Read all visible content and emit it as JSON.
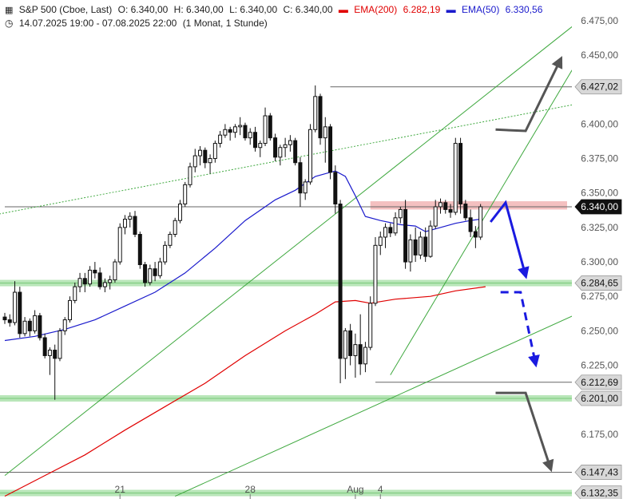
{
  "header": {
    "icon": "candlestick-icon",
    "instrument": "S&P 500 (Cboe, Last)",
    "open": "O: 6.340,00",
    "high": "H: 6.340,00",
    "low": "L: 6.340,00",
    "close": "C: 6.340,00",
    "ema200_label": "EMA(200)",
    "ema200_value": "6.282,19",
    "ema50_label": "EMA(50)",
    "ema50_value": "6.330,56",
    "range_icon": "clock-icon",
    "range": "14.07.2025 19:00 - 07.08.2025 22:00",
    "interval": "(1 Monat, 1 Stunde)"
  },
  "colors": {
    "ema200": "#e00000",
    "ema50": "#1a1acc",
    "trend": "#3ea83e",
    "arrow_blue": "#1a1ae0",
    "arrow_gray": "#555555",
    "support_band": "#b8e6b8",
    "resistance_band": "#f4c0c0",
    "tag_dark": "#111111",
    "tag_gray": "#d8d8d8"
  },
  "chart_data": {
    "type": "candlestick",
    "ylim": [
      6128,
      6490
    ],
    "y_ticks": [
      {
        "value": 6475,
        "label": "6.475,00"
      },
      {
        "value": 6450,
        "label": "6.450,00"
      },
      {
        "value": 6400,
        "label": "6.400,00"
      },
      {
        "value": 6375,
        "label": "6.375,00"
      },
      {
        "value": 6350,
        "label": "6.350,00"
      },
      {
        "value": 6325,
        "label": "6.325,00"
      },
      {
        "value": 6300,
        "label": "6.300,00"
      },
      {
        "value": 6275,
        "label": "6.275,00"
      },
      {
        "value": 6250,
        "label": "6.250,00"
      },
      {
        "value": 6225,
        "label": "6.225,00"
      },
      {
        "value": 6175,
        "label": "6.175,00"
      }
    ],
    "x_ticks": [
      {
        "index": 23,
        "label": "21"
      },
      {
        "index": 49,
        "label": "28"
      },
      {
        "index": 70,
        "label": "Aug"
      },
      {
        "index": 75,
        "label": "4"
      }
    ],
    "price_levels": [
      {
        "value": 6427.02,
        "label": "6.427,02",
        "style": "gray"
      },
      {
        "value": 6340.0,
        "label": "6.340,00",
        "style": "dark"
      },
      {
        "value": 6284.65,
        "label": "6.284,65",
        "style": "gray",
        "band": true
      },
      {
        "value": 6212.69,
        "label": "6.212,69",
        "style": "gray"
      },
      {
        "value": 6201.0,
        "label": "6.201,00",
        "style": "gray",
        "band": true
      },
      {
        "value": 6147.43,
        "label": "6.147,43",
        "style": "gray"
      },
      {
        "value": 6132.35,
        "label": "6.132,35",
        "style": "gray",
        "band": true
      }
    ],
    "resistance_zone": {
      "low": 6338,
      "high": 6344
    },
    "candles": [
      [
        6260,
        6263,
        6255,
        6258
      ],
      [
        6258,
        6262,
        6253,
        6256
      ],
      [
        6256,
        6286,
        6254,
        6278
      ],
      [
        6278,
        6282,
        6245,
        6248
      ],
      [
        6248,
        6260,
        6246,
        6257
      ],
      [
        6257,
        6259,
        6246,
        6250
      ],
      [
        6250,
        6265,
        6248,
        6261
      ],
      [
        6261,
        6263,
        6243,
        6245
      ],
      [
        6245,
        6248,
        6230,
        6232
      ],
      [
        6232,
        6238,
        6218,
        6236
      ],
      [
        6236,
        6240,
        6200,
        6230
      ],
      [
        6230,
        6252,
        6228,
        6250
      ],
      [
        6250,
        6260,
        6247,
        6258
      ],
      [
        6258,
        6275,
        6256,
        6272
      ],
      [
        6272,
        6285,
        6270,
        6282
      ],
      [
        6282,
        6292,
        6278,
        6288
      ],
      [
        6288,
        6292,
        6278,
        6284
      ],
      [
        6284,
        6297,
        6282,
        6294
      ],
      [
        6294,
        6300,
        6288,
        6292
      ],
      [
        6292,
        6296,
        6280,
        6282
      ],
      [
        6282,
        6288,
        6278,
        6285
      ],
      [
        6285,
        6290,
        6280,
        6287
      ],
      [
        6287,
        6302,
        6285,
        6300
      ],
      [
        6300,
        6328,
        6298,
        6325
      ],
      [
        6325,
        6334,
        6320,
        6331
      ],
      [
        6331,
        6336,
        6325,
        6333
      ],
      [
        6333,
        6337,
        6318,
        6320
      ],
      [
        6320,
        6322,
        6295,
        6298
      ],
      [
        6298,
        6300,
        6282,
        6285
      ],
      [
        6285,
        6298,
        6283,
        6295
      ],
      [
        6295,
        6300,
        6286,
        6290
      ],
      [
        6290,
        6303,
        6288,
        6300
      ],
      [
        6300,
        6315,
        6298,
        6312
      ],
      [
        6312,
        6322,
        6310,
        6320
      ],
      [
        6320,
        6332,
        6318,
        6330
      ],
      [
        6330,
        6345,
        6328,
        6342
      ],
      [
        6342,
        6358,
        6340,
        6356
      ],
      [
        6356,
        6372,
        6354,
        6369
      ],
      [
        6369,
        6382,
        6365,
        6377
      ],
      [
        6377,
        6384,
        6370,
        6381
      ],
      [
        6381,
        6383,
        6368,
        6372
      ],
      [
        6372,
        6378,
        6364,
        6375
      ],
      [
        6375,
        6388,
        6372,
        6386
      ],
      [
        6386,
        6395,
        6383,
        6392
      ],
      [
        6392,
        6400,
        6390,
        6396
      ],
      [
        6396,
        6398,
        6388,
        6394
      ],
      [
        6394,
        6400,
        6390,
        6398
      ],
      [
        6398,
        6405,
        6392,
        6399
      ],
      [
        6399,
        6401,
        6388,
        6390
      ],
      [
        6390,
        6397,
        6385,
        6394
      ],
      [
        6394,
        6398,
        6380,
        6383
      ],
      [
        6383,
        6388,
        6376,
        6386
      ],
      [
        6386,
        6412,
        6384,
        6406
      ],
      [
        6406,
        6408,
        6388,
        6390
      ],
      [
        6390,
        6393,
        6373,
        6376
      ],
      [
        6376,
        6385,
        6370,
        6383
      ],
      [
        6383,
        6390,
        6376,
        6385
      ],
      [
        6385,
        6392,
        6380,
        6388
      ],
      [
        6388,
        6390,
        6370,
        6372
      ],
      [
        6372,
        6376,
        6340,
        6350
      ],
      [
        6350,
        6360,
        6345,
        6358
      ],
      [
        6358,
        6400,
        6356,
        6396
      ],
      [
        6396,
        6428,
        6394,
        6420
      ],
      [
        6420,
        6422,
        6385,
        6390
      ],
      [
        6390,
        6405,
        6372,
        6398
      ],
      [
        6398,
        6400,
        6360,
        6365
      ],
      [
        6365,
        6370,
        6335,
        6342
      ],
      [
        6342,
        6345,
        6212,
        6230
      ],
      [
        6230,
        6252,
        6215,
        6250
      ],
      [
        6250,
        6255,
        6225,
        6232
      ],
      [
        6232,
        6248,
        6216,
        6240
      ],
      [
        6240,
        6262,
        6218,
        6226
      ],
      [
        6226,
        6242,
        6220,
        6238
      ],
      [
        6238,
        6275,
        6236,
        6270
      ],
      [
        6270,
        6318,
        6268,
        6312
      ],
      [
        6312,
        6322,
        6305,
        6318
      ],
      [
        6318,
        6328,
        6310,
        6325
      ],
      [
        6325,
        6328,
        6318,
        6321
      ],
      [
        6321,
        6336,
        6319,
        6332
      ],
      [
        6332,
        6340,
        6328,
        6338
      ],
      [
        6338,
        6345,
        6295,
        6300
      ],
      [
        6300,
        6320,
        6293,
        6316
      ],
      [
        6316,
        6325,
        6300,
        6305
      ],
      [
        6305,
        6322,
        6302,
        6318
      ],
      [
        6318,
        6325,
        6300,
        6304
      ],
      [
        6304,
        6330,
        6303,
        6326
      ],
      [
        6326,
        6345,
        6324,
        6340
      ],
      [
        6340,
        6346,
        6335,
        6343
      ],
      [
        6343,
        6345,
        6335,
        6338
      ],
      [
        6338,
        6342,
        6332,
        6336
      ],
      [
        6336,
        6390,
        6334,
        6386
      ],
      [
        6386,
        6390,
        6335,
        6342
      ],
      [
        6342,
        6345,
        6330,
        6332
      ],
      [
        6332,
        6338,
        6318,
        6322
      ],
      [
        6322,
        6326,
        6310,
        6318
      ],
      [
        6318,
        6342,
        6316,
        6340
      ]
    ],
    "ema50_points": [
      [
        0,
        6243
      ],
      [
        6,
        6246
      ],
      [
        12,
        6251
      ],
      [
        18,
        6258
      ],
      [
        24,
        6268
      ],
      [
        30,
        6278
      ],
      [
        36,
        6292
      ],
      [
        42,
        6310
      ],
      [
        48,
        6330
      ],
      [
        54,
        6345
      ],
      [
        58,
        6352
      ],
      [
        62,
        6362
      ],
      [
        66,
        6366
      ],
      [
        68,
        6362
      ],
      [
        70,
        6348
      ],
      [
        72,
        6333
      ],
      [
        75,
        6330
      ],
      [
        79,
        6327
      ],
      [
        82,
        6326
      ],
      [
        84,
        6322
      ],
      [
        87,
        6325
      ],
      [
        90,
        6328
      ],
      [
        93,
        6330
      ],
      [
        95,
        6331
      ]
    ],
    "ema200_points": [
      [
        0,
        6130
      ],
      [
        8,
        6145
      ],
      [
        16,
        6160
      ],
      [
        24,
        6178
      ],
      [
        32,
        6195
      ],
      [
        40,
        6212
      ],
      [
        48,
        6232
      ],
      [
        56,
        6250
      ],
      [
        62,
        6262
      ],
      [
        66,
        6271
      ],
      [
        70,
        6272
      ],
      [
        73,
        6270
      ],
      [
        78,
        6273
      ],
      [
        85,
        6275
      ],
      [
        90,
        6279
      ],
      [
        96,
        6282
      ]
    ],
    "trendlines": [
      {
        "from": [
          0,
          6145
        ],
        "to": [
          120,
          6490
        ],
        "style": "solid"
      },
      {
        "from": [
          77,
          6218
        ],
        "to": [
          118,
          6468
        ],
        "style": "solid"
      },
      {
        "from": [
          34,
          6130
        ],
        "to": [
          125,
          6280
        ],
        "style": "solid"
      },
      {
        "from": [
          -8,
          6330
        ],
        "to": [
          125,
          6422
        ],
        "style": "dotted"
      }
    ],
    "annotations": [
      {
        "kind": "arrow",
        "color": "blue",
        "dash": false,
        "points": [
          [
            97,
            6329
          ],
          [
            100,
            6343
          ],
          [
            104,
            6290
          ]
        ]
      },
      {
        "kind": "arrow",
        "color": "blue",
        "dash": true,
        "points": [
          [
            99,
            6278
          ],
          [
            103,
            6278
          ],
          [
            106,
            6226
          ]
        ]
      },
      {
        "kind": "arrow",
        "color": "gray",
        "dash": false,
        "points": [
          [
            98,
            6396
          ],
          [
            104,
            6395
          ],
          [
            111,
            6447
          ]
        ]
      },
      {
        "kind": "arrow",
        "color": "gray",
        "dash": false,
        "points": [
          [
            98,
            6205
          ],
          [
            104,
            6205
          ],
          [
            109,
            6150
          ]
        ]
      }
    ]
  }
}
